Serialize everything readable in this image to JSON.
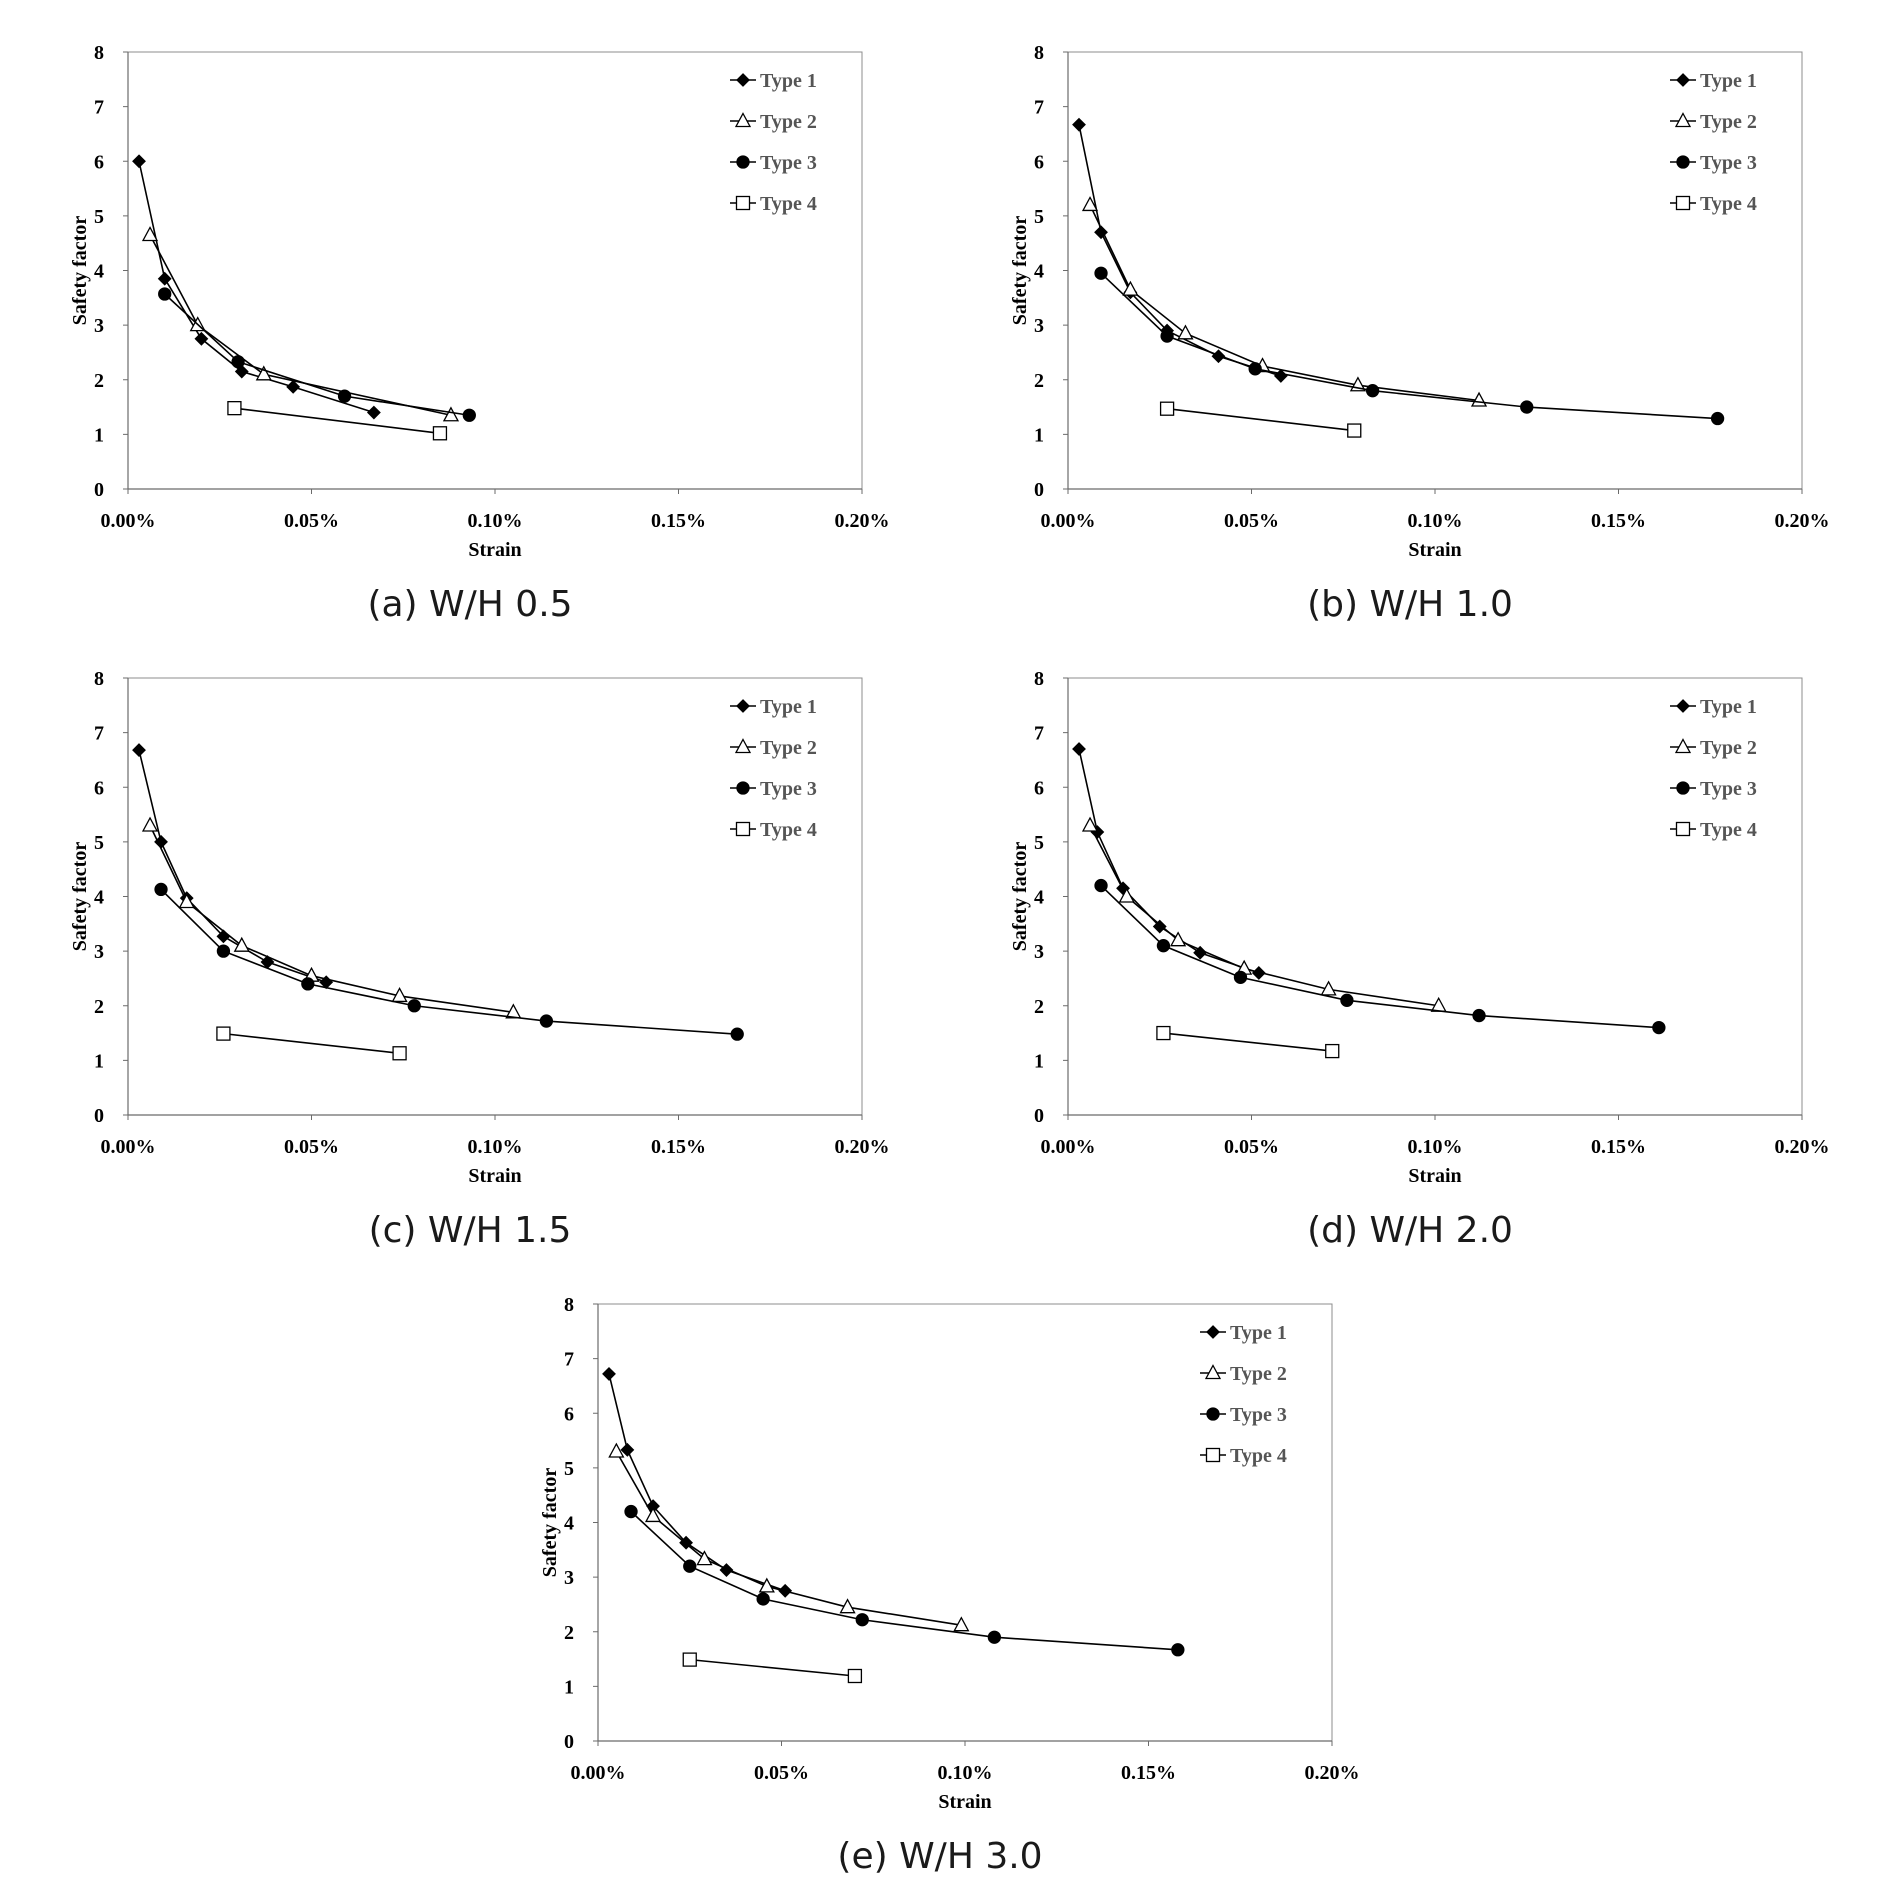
{
  "chart_data": [
    {
      "type": "line",
      "caption": "(a) W/H 0.5",
      "xlabel": "Strain",
      "ylabel": "Safety factor",
      "xlim": [
        0,
        0.2
      ],
      "ylim": [
        0,
        8
      ],
      "x_ticks": [
        "0.00%",
        "0.05%",
        "0.10%",
        "0.15%",
        "0.20%"
      ],
      "y_ticks": [
        "0",
        "1",
        "2",
        "3",
        "4",
        "5",
        "6",
        "7",
        "8"
      ],
      "legend_position": "top-right",
      "series": [
        {
          "name": "Type 1",
          "marker": "diamond",
          "x": [
            0.003,
            0.01,
            0.02,
            0.031,
            0.045,
            0.067
          ],
          "y": [
            6.0,
            3.85,
            2.75,
            2.15,
            1.87,
            1.4
          ]
        },
        {
          "name": "Type 2",
          "marker": "triangle",
          "x": [
            0.006,
            0.019,
            0.037,
            0.088
          ],
          "y": [
            4.65,
            3.0,
            2.1,
            1.35
          ]
        },
        {
          "name": "Type 3",
          "marker": "circle",
          "x": [
            0.01,
            0.03,
            0.059,
            0.093
          ],
          "y": [
            3.57,
            2.33,
            1.7,
            1.35
          ]
        },
        {
          "name": "Type 4",
          "marker": "square",
          "x": [
            0.029,
            0.085
          ],
          "y": [
            1.48,
            1.02
          ]
        }
      ]
    },
    {
      "type": "line",
      "caption": "(b) W/H 1.0",
      "xlabel": "Strain",
      "ylabel": "Safety factor",
      "xlim": [
        0,
        0.2
      ],
      "ylim": [
        0,
        8
      ],
      "x_ticks": [
        "0.00%",
        "0.05%",
        "0.10%",
        "0.15%",
        "0.20%"
      ],
      "y_ticks": [
        "0",
        "1",
        "2",
        "3",
        "4",
        "5",
        "6",
        "7",
        "8"
      ],
      "legend_position": "top-right",
      "series": [
        {
          "name": "Type 1",
          "marker": "diamond",
          "x": [
            0.003,
            0.009,
            0.017,
            0.027,
            0.041,
            0.058
          ],
          "y": [
            6.67,
            4.7,
            3.6,
            2.9,
            2.43,
            2.07
          ]
        },
        {
          "name": "Type 2",
          "marker": "triangle",
          "x": [
            0.006,
            0.017,
            0.032,
            0.053,
            0.079,
            0.112
          ],
          "y": [
            5.2,
            3.65,
            2.85,
            2.25,
            1.9,
            1.62
          ]
        },
        {
          "name": "Type 3",
          "marker": "circle",
          "x": [
            0.009,
            0.027,
            0.051,
            0.083,
            0.125,
            0.177
          ],
          "y": [
            3.95,
            2.8,
            2.2,
            1.8,
            1.5,
            1.29
          ]
        },
        {
          "name": "Type 4",
          "marker": "square",
          "x": [
            0.027,
            0.078
          ],
          "y": [
            1.47,
            1.07
          ]
        }
      ]
    },
    {
      "type": "line",
      "caption": "(c) W/H 1.5",
      "xlabel": "Strain",
      "ylabel": "Safety factor",
      "xlim": [
        0,
        0.2
      ],
      "ylim": [
        0,
        8
      ],
      "x_ticks": [
        "0.00%",
        "0.05%",
        "0.10%",
        "0.15%",
        "0.20%"
      ],
      "y_ticks": [
        "0",
        "1",
        "2",
        "3",
        "4",
        "5",
        "6",
        "7",
        "8"
      ],
      "legend_position": "top-right",
      "series": [
        {
          "name": "Type 1",
          "marker": "diamond",
          "x": [
            0.003,
            0.009,
            0.016,
            0.026,
            0.038,
            0.054
          ],
          "y": [
            6.68,
            5.0,
            3.97,
            3.27,
            2.8,
            2.43
          ]
        },
        {
          "name": "Type 2",
          "marker": "triangle",
          "x": [
            0.006,
            0.016,
            0.031,
            0.05,
            0.074,
            0.105
          ],
          "y": [
            5.3,
            3.9,
            3.1,
            2.55,
            2.18,
            1.88
          ]
        },
        {
          "name": "Type 3",
          "marker": "circle",
          "x": [
            0.009,
            0.026,
            0.049,
            0.078,
            0.114,
            0.166
          ],
          "y": [
            4.13,
            3.0,
            2.4,
            2.0,
            1.72,
            1.48
          ]
        },
        {
          "name": "Type 4",
          "marker": "square",
          "x": [
            0.026,
            0.074
          ],
          "y": [
            1.49,
            1.13
          ]
        }
      ]
    },
    {
      "type": "line",
      "caption": "(d) W/H 2.0",
      "xlabel": "Strain",
      "ylabel": "Safety factor",
      "xlim": [
        0,
        0.2
      ],
      "ylim": [
        0,
        8
      ],
      "x_ticks": [
        "0.00%",
        "0.05%",
        "0.10%",
        "0.15%",
        "0.20%"
      ],
      "y_ticks": [
        "0",
        "1",
        "2",
        "3",
        "4",
        "5",
        "6",
        "7",
        "8"
      ],
      "legend_position": "top-right",
      "series": [
        {
          "name": "Type 1",
          "marker": "diamond",
          "x": [
            0.003,
            0.008,
            0.015,
            0.025,
            0.036,
            0.052
          ],
          "y": [
            6.7,
            5.18,
            4.15,
            3.45,
            2.97,
            2.6
          ]
        },
        {
          "name": "Type 2",
          "marker": "triangle",
          "x": [
            0.006,
            0.016,
            0.03,
            0.048,
            0.071,
            0.101
          ],
          "y": [
            5.3,
            4.0,
            3.2,
            2.68,
            2.3,
            2.0
          ]
        },
        {
          "name": "Type 3",
          "marker": "circle",
          "x": [
            0.009,
            0.026,
            0.047,
            0.076,
            0.112,
            0.161
          ],
          "y": [
            4.2,
            3.1,
            2.52,
            2.1,
            1.82,
            1.6
          ]
        },
        {
          "name": "Type 4",
          "marker": "square",
          "x": [
            0.026,
            0.072
          ],
          "y": [
            1.5,
            1.17
          ]
        }
      ]
    },
    {
      "type": "line",
      "caption": "(e) W/H 3.0",
      "xlabel": "Strain",
      "ylabel": "Safety factor",
      "xlim": [
        0,
        0.2
      ],
      "ylim": [
        0,
        8
      ],
      "x_ticks": [
        "0.00%",
        "0.05%",
        "0.10%",
        "0.15%",
        "0.20%"
      ],
      "y_ticks": [
        "0",
        "1",
        "2",
        "3",
        "4",
        "5",
        "6",
        "7",
        "8"
      ],
      "legend_position": "top-right",
      "series": [
        {
          "name": "Type 1",
          "marker": "diamond",
          "x": [
            0.003,
            0.008,
            0.015,
            0.024,
            0.035,
            0.051
          ],
          "y": [
            6.72,
            5.33,
            4.3,
            3.63,
            3.13,
            2.75
          ]
        },
        {
          "name": "Type 2",
          "marker": "triangle",
          "x": [
            0.005,
            0.015,
            0.029,
            0.046,
            0.068,
            0.099
          ],
          "y": [
            5.3,
            4.12,
            3.33,
            2.83,
            2.45,
            2.12
          ]
        },
        {
          "name": "Type 3",
          "marker": "circle",
          "x": [
            0.009,
            0.025,
            0.045,
            0.072,
            0.108,
            0.158
          ],
          "y": [
            4.2,
            3.2,
            2.6,
            2.22,
            1.9,
            1.67
          ]
        },
        {
          "name": "Type 4",
          "marker": "square",
          "x": [
            0.025,
            0.07
          ],
          "y": [
            1.49,
            1.19
          ]
        }
      ]
    }
  ]
}
